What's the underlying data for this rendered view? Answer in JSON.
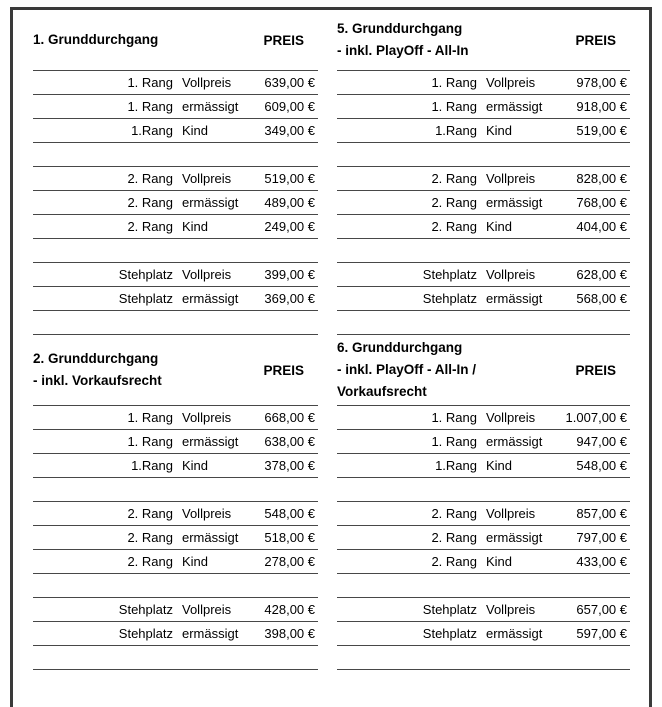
{
  "labels": {
    "preis": "PREIS"
  },
  "colors": {
    "frame": "#3a3a3a",
    "rule": "#474747",
    "text": "#000000",
    "background": "#ffffff"
  },
  "sections": [
    {
      "title_lines": [
        "1. Grunddurchgang"
      ],
      "rows": [
        {
          "rang": "1. Rang",
          "tarif": "Vollpreis",
          "preis": "639,00 €"
        },
        {
          "rang": "1. Rang",
          "tarif": "ermässigt",
          "preis": "609,00 €"
        },
        {
          "rang": "1.Rang",
          "tarif": "Kind",
          "preis": "349,00 €"
        },
        {
          "rang": "2. Rang",
          "tarif": "Vollpreis",
          "preis": "519,00 €"
        },
        {
          "rang": "2. Rang",
          "tarif": "ermässigt",
          "preis": "489,00 €"
        },
        {
          "rang": "2. Rang",
          "tarif": "Kind",
          "preis": "249,00 €"
        },
        {
          "rang": "Stehplatz",
          "tarif": "Vollpreis",
          "preis": "399,00 €"
        },
        {
          "rang": "Stehplatz",
          "tarif": "ermässigt",
          "preis": "369,00 €"
        }
      ]
    },
    {
      "title_lines": [
        "2. Grunddurchgang",
        "- inkl. Vorkaufsrecht"
      ],
      "rows": [
        {
          "rang": "1. Rang",
          "tarif": "Vollpreis",
          "preis": "668,00 €"
        },
        {
          "rang": "1. Rang",
          "tarif": "ermässigt",
          "preis": "638,00 €"
        },
        {
          "rang": "1.Rang",
          "tarif": "Kind",
          "preis": "378,00 €"
        },
        {
          "rang": "2. Rang",
          "tarif": "Vollpreis",
          "preis": "548,00 €"
        },
        {
          "rang": "2. Rang",
          "tarif": "ermässigt",
          "preis": "518,00 €"
        },
        {
          "rang": "2. Rang",
          "tarif": "Kind",
          "preis": "278,00 €"
        },
        {
          "rang": "Stehplatz",
          "tarif": "Vollpreis",
          "preis": "428,00 €"
        },
        {
          "rang": "Stehplatz",
          "tarif": "ermässigt",
          "preis": "398,00 €"
        }
      ]
    },
    {
      "title_lines": [
        "5. Grunddurchgang",
        "- inkl. PlayOff - All-In"
      ],
      "rows": [
        {
          "rang": "1. Rang",
          "tarif": "Vollpreis",
          "preis": "978,00 €"
        },
        {
          "rang": "1. Rang",
          "tarif": "ermässigt",
          "preis": "918,00 €"
        },
        {
          "rang": "1.Rang",
          "tarif": "Kind",
          "preis": "519,00 €"
        },
        {
          "rang": "2. Rang",
          "tarif": "Vollpreis",
          "preis": "828,00 €"
        },
        {
          "rang": "2. Rang",
          "tarif": "ermässigt",
          "preis": "768,00 €"
        },
        {
          "rang": "2. Rang",
          "tarif": "Kind",
          "preis": "404,00 €"
        },
        {
          "rang": "Stehplatz",
          "tarif": "Vollpreis",
          "preis": "628,00 €"
        },
        {
          "rang": "Stehplatz",
          "tarif": "ermässigt",
          "preis": "568,00 €"
        }
      ]
    },
    {
      "title_lines": [
        "6. Grunddurchgang",
        "- inkl. PlayOff - All-In  /",
        "Vorkaufsrecht"
      ],
      "rows": [
        {
          "rang": "1. Rang",
          "tarif": "Vollpreis",
          "preis": "1.007,00 €"
        },
        {
          "rang": "1. Rang",
          "tarif": "ermässigt",
          "preis": "947,00 €"
        },
        {
          "rang": "1.Rang",
          "tarif": "Kind",
          "preis": "548,00 €"
        },
        {
          "rang": "2. Rang",
          "tarif": "Vollpreis",
          "preis": "857,00 €"
        },
        {
          "rang": "2. Rang",
          "tarif": "ermässigt",
          "preis": "797,00 €"
        },
        {
          "rang": "2. Rang",
          "tarif": "Kind",
          "preis": "433,00 €"
        },
        {
          "rang": "Stehplatz",
          "tarif": "Vollpreis",
          "preis": "657,00 €"
        },
        {
          "rang": "Stehplatz",
          "tarif": "ermässigt",
          "preis": "597,00 €"
        }
      ]
    }
  ]
}
